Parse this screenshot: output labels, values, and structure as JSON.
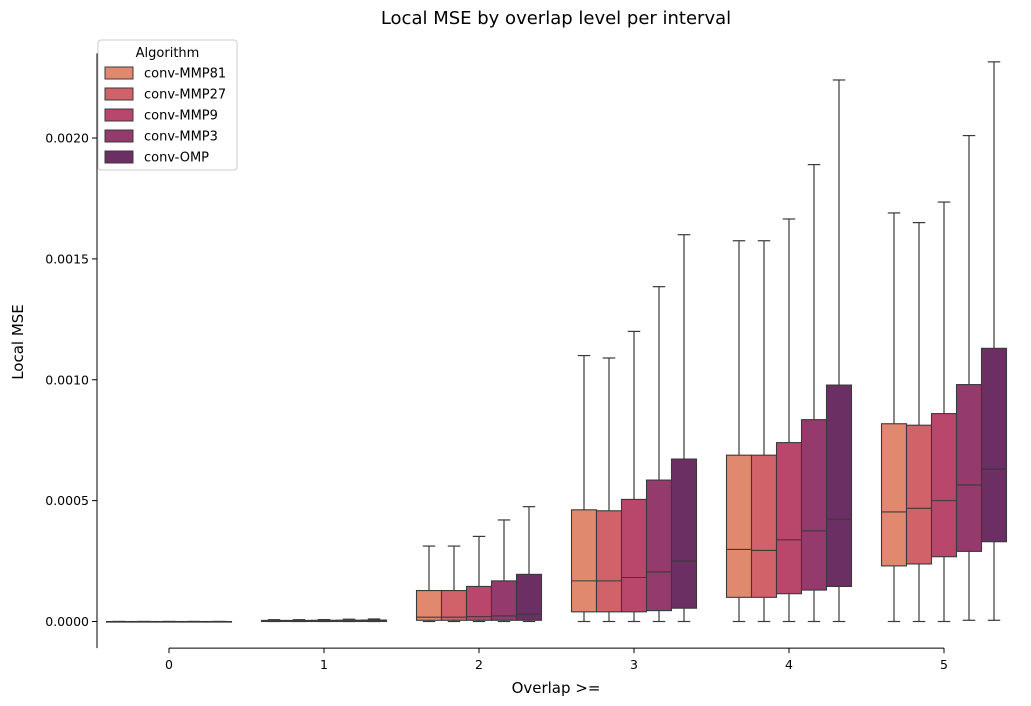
{
  "chart_data": {
    "type": "boxplot",
    "title": "Local MSE by overlap level per interval",
    "xlabel": "Overlap >=",
    "ylabel": "Local MSE",
    "categories": [
      "0",
      "1",
      "2",
      "3",
      "4",
      "5"
    ],
    "ylim": [
      -0.00011,
      0.00235
    ],
    "yticks": [
      0.0,
      0.0005,
      0.001,
      0.0015,
      0.002
    ],
    "ytick_labels": [
      "0.0000",
      "0.0005",
      "0.0010",
      "0.0015",
      "0.0020"
    ],
    "grid": false,
    "legend": {
      "title": "Algorithm",
      "position": "top-left"
    },
    "series": [
      {
        "name": "conv-MMP81",
        "color": "#e0896e",
        "boxes": [
          {
            "whislo": 0,
            "q1": 0,
            "med": 0,
            "q3": 0,
            "whishi": 0
          },
          {
            "whislo": 0,
            "q1": 0,
            "med": 5e-07,
            "q3": 4.5e-06,
            "whishi": 7.5e-06
          },
          {
            "whislo": 0,
            "q1": 5e-06,
            "med": 1.8e-05,
            "q3": 0.000128,
            "whishi": 0.000312
          },
          {
            "whislo": 0,
            "q1": 4e-05,
            "med": 0.000168,
            "q3": 0.000462,
            "whishi": 0.0011
          },
          {
            "whislo": 0,
            "q1": 0.0001,
            "med": 0.000298,
            "q3": 0.000688,
            "whishi": 0.001575
          },
          {
            "whislo": 0,
            "q1": 0.00023,
            "med": 0.000453,
            "q3": 0.000818,
            "whishi": 0.00169
          }
        ]
      },
      {
        "name": "conv-MMP27",
        "color": "#d1626a",
        "boxes": [
          {
            "whislo": 0,
            "q1": 0,
            "med": 0,
            "q3": 0,
            "whishi": 0
          },
          {
            "whislo": 0,
            "q1": 0,
            "med": 5e-07,
            "q3": 4.5e-06,
            "whishi": 7.5e-06
          },
          {
            "whislo": 0,
            "q1": 5e-06,
            "med": 1.8e-05,
            "q3": 0.000128,
            "whishi": 0.000312
          },
          {
            "whislo": 0,
            "q1": 4e-05,
            "med": 0.000168,
            "q3": 0.000458,
            "whishi": 0.00109
          },
          {
            "whislo": 0,
            "q1": 0.0001,
            "med": 0.000294,
            "q3": 0.000688,
            "whishi": 0.001575
          },
          {
            "whislo": 0,
            "q1": 0.000238,
            "med": 0.000468,
            "q3": 0.000812,
            "whishi": 0.00165
          }
        ]
      },
      {
        "name": "conv-MMP9",
        "color": "#b9476c",
        "boxes": [
          {
            "whislo": 0,
            "q1": 0,
            "med": 0,
            "q3": 0,
            "whishi": 0
          },
          {
            "whislo": 0,
            "q1": 0,
            "med": 5e-07,
            "q3": 5e-06,
            "whishi": 8e-06
          },
          {
            "whislo": 0,
            "q1": 5e-06,
            "med": 2e-05,
            "q3": 0.000145,
            "whishi": 0.000352
          },
          {
            "whislo": 0,
            "q1": 4e-05,
            "med": 0.000182,
            "q3": 0.000505,
            "whishi": 0.0012
          },
          {
            "whislo": 0,
            "q1": 0.000115,
            "med": 0.000338,
            "q3": 0.00074,
            "whishi": 0.001665
          },
          {
            "whislo": 0,
            "q1": 0.000268,
            "med": 0.0005,
            "q3": 0.00086,
            "whishi": 0.001735
          }
        ]
      },
      {
        "name": "conv-MMP3",
        "color": "#943a6c",
        "boxes": [
          {
            "whislo": 0,
            "q1": 0,
            "med": 0,
            "q3": 0,
            "whishi": 0
          },
          {
            "whislo": 0,
            "q1": 0,
            "med": 5e-07,
            "q3": 5.5e-06,
            "whishi": 9.5e-06
          },
          {
            "whislo": 0,
            "q1": 5e-06,
            "med": 2.3e-05,
            "q3": 0.000168,
            "whishi": 0.00042
          },
          {
            "whislo": 0,
            "q1": 4.5e-05,
            "med": 0.000205,
            "q3": 0.000585,
            "whishi": 0.001385
          },
          {
            "whislo": 0,
            "q1": 0.00013,
            "med": 0.000375,
            "q3": 0.000835,
            "whishi": 0.00189
          },
          {
            "whislo": 5e-06,
            "q1": 0.00029,
            "med": 0.000565,
            "q3": 0.00098,
            "whishi": 0.00201
          }
        ]
      },
      {
        "name": "conv-OMP",
        "color": "#6b2f63",
        "boxes": [
          {
            "whislo": 0,
            "q1": 0,
            "med": 0,
            "q3": 0,
            "whishi": 0
          },
          {
            "whislo": 0,
            "q1": 0,
            "med": 5e-07,
            "q3": 6e-06,
            "whishi": 1.05e-05
          },
          {
            "whislo": 0,
            "q1": 5e-06,
            "med": 3e-05,
            "q3": 0.000195,
            "whishi": 0.000475
          },
          {
            "whislo": 0,
            "q1": 5.5e-05,
            "med": 0.00025,
            "q3": 0.000672,
            "whishi": 0.0016
          },
          {
            "whislo": 0,
            "q1": 0.000145,
            "med": 0.000423,
            "q3": 0.000978,
            "whishi": 0.00224
          },
          {
            "whislo": 5e-06,
            "q1": 0.00033,
            "med": 0.00063,
            "q3": 0.00113,
            "whishi": 0.002315
          }
        ]
      }
    ]
  }
}
